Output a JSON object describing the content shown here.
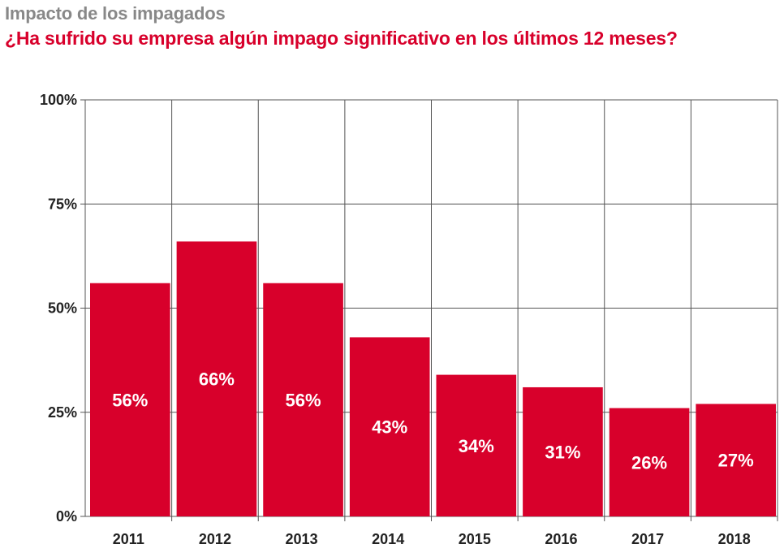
{
  "title": "Impacto de los impagados",
  "subtitle": "¿Ha sufrido su empresa algún impago significativo en los últimos 12 meses?",
  "colors": {
    "bar": "#d8002b",
    "title": "#888888",
    "subtitle": "#d8002b",
    "grid": "#555555"
  },
  "chart_data": {
    "type": "bar",
    "title": "Impacto de los impagados",
    "subtitle": "¿Ha sufrido su empresa algún impago significativo en los últimos 12 meses?",
    "categories": [
      "2011",
      "2012",
      "2013",
      "2014",
      "2015",
      "2016",
      "2017",
      "2018"
    ],
    "values": [
      56,
      66,
      56,
      43,
      34,
      31,
      26,
      27
    ],
    "data_labels": [
      "56%",
      "66%",
      "56%",
      "43%",
      "34%",
      "31%",
      "26%",
      "27%"
    ],
    "ylim": [
      0,
      100
    ],
    "yticks": [
      0,
      25,
      50,
      75,
      100
    ],
    "ytick_labels": [
      "0%",
      "25%",
      "50%",
      "75%",
      "100%"
    ],
    "xlabel": "",
    "ylabel": "",
    "grid": true
  }
}
